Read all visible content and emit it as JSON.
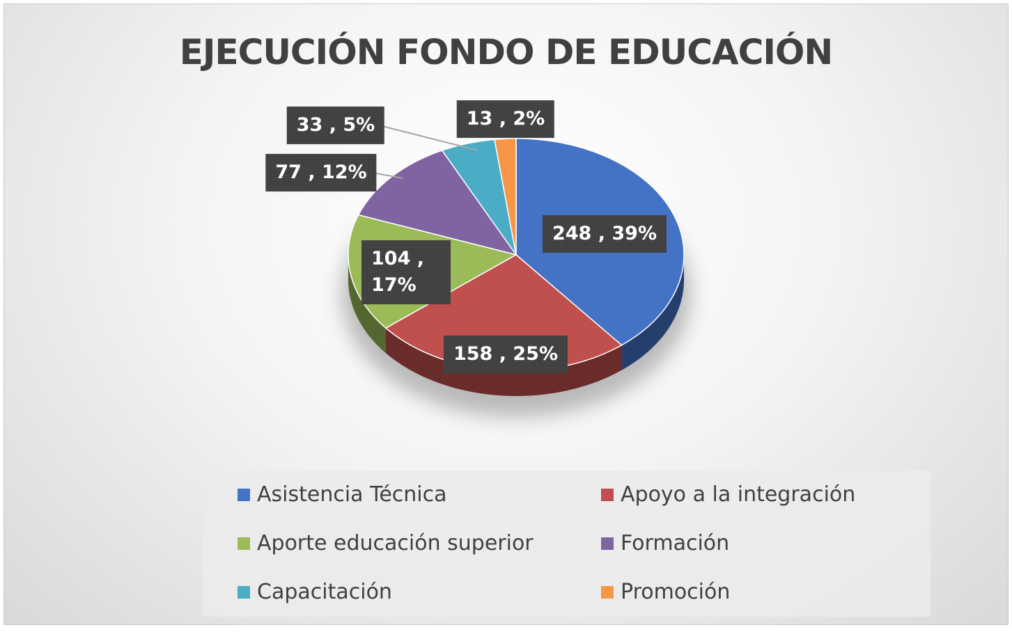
{
  "chart_data": {
    "type": "pie",
    "title": "EJECUCIÓN FONDO DE EDUCACIÓN",
    "categories": [
      "Asistencia Técnica",
      "Apoyo a la integración",
      "Aporte educación superior",
      "Formación",
      "Capacitación",
      "Promoción"
    ],
    "values": [
      248,
      158,
      104,
      77,
      33,
      13
    ],
    "value_labels": [
      "248 , 39%",
      "158 , 25%",
      "104 , 17%",
      "77 , 12%",
      "33 , 5%",
      "13 , 2%"
    ],
    "colors": [
      "#4472c4",
      "#c0504d",
      "#9bbb59",
      "#8064a2",
      "#4bacc6",
      "#f79646"
    ],
    "legend": "bottom"
  }
}
